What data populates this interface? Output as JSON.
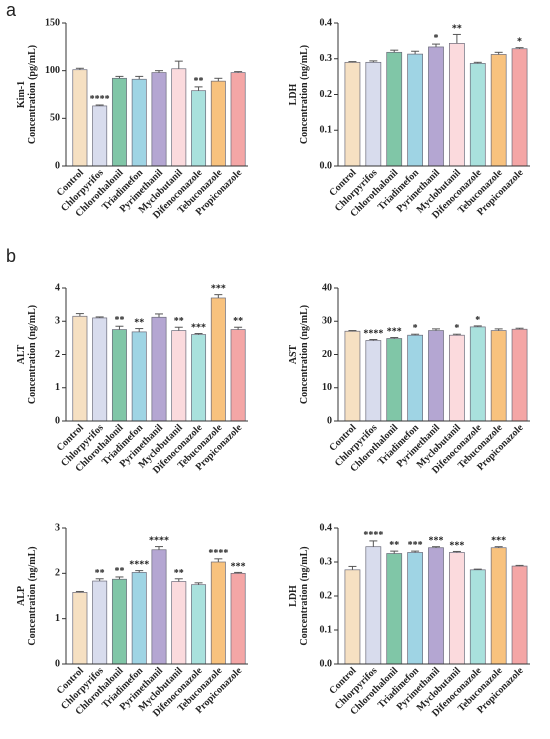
{
  "panel_labels": [
    "a",
    "b"
  ],
  "chart_data": [
    {
      "type": "bar",
      "ylabel_lines": [
        "Kim-1",
        "Concentration (pg/mL)"
      ],
      "categories": [
        "Control",
        "Chlorpyrifos",
        "Chlorothalonil",
        "Triadimefon",
        "Pyrimethanil",
        "Myclobutanil",
        "Difenoconazole",
        "Tebuconazole",
        "Propiconazole"
      ],
      "values": [
        101,
        63,
        92,
        91,
        98,
        102,
        79,
        89,
        98
      ],
      "errors": [
        1.5,
        1,
        2,
        3,
        2,
        8,
        4,
        3,
        1
      ],
      "annotations": [
        null,
        "****",
        null,
        null,
        null,
        null,
        "**",
        null,
        null
      ],
      "colors": [
        "#f6e0c2",
        "#d8dced",
        "#80c6a7",
        "#9fd4e4",
        "#b4a6d2",
        "#fbdadd",
        "#a9e1dd",
        "#f8c27e",
        "#f4a6a6"
      ],
      "ylim": [
        0,
        150
      ],
      "yticks": [
        0,
        50,
        100,
        150
      ]
    },
    {
      "type": "bar",
      "ylabel_lines": [
        "LDH",
        "Concentration (ng/mL)"
      ],
      "categories": [
        "Control",
        "Chlorpyrifos",
        "Chlorothalonil",
        "Triadimefon",
        "Pyrimethanil",
        "Myclobutanil",
        "Difenoconazole",
        "Tebuconazole",
        "Propiconazole"
      ],
      "values": [
        0.29,
        0.29,
        0.318,
        0.313,
        0.333,
        0.343,
        0.287,
        0.312,
        0.328
      ],
      "errors": [
        0.002,
        0.004,
        0.006,
        0.008,
        0.008,
        0.025,
        0.003,
        0.006,
        0.003
      ],
      "annotations": [
        null,
        null,
        null,
        null,
        "*",
        "**",
        null,
        null,
        "*"
      ],
      "colors": [
        "#f6e0c2",
        "#d8dced",
        "#80c6a7",
        "#9fd4e4",
        "#b4a6d2",
        "#fbdadd",
        "#a9e1dd",
        "#f8c27e",
        "#f4a6a6"
      ],
      "ylim": [
        0,
        0.4
      ],
      "yticks": [
        {
          "value": 0,
          "label": "0.0"
        },
        0.1,
        0.2,
        0.3,
        0.4
      ]
    },
    {
      "type": "bar",
      "ylabel_lines": [
        "ALT",
        "Concentration (ng/mL)"
      ],
      "categories": [
        "Control",
        "Chlorpyrifos",
        "Chlorothalonil",
        "Triadimefon",
        "Pyrimethanil",
        "Myclobutanil",
        "Difenoconazole",
        "Tebuconazole",
        "Propiconazole"
      ],
      "values": [
        3.15,
        3.1,
        2.75,
        2.68,
        3.12,
        2.72,
        2.6,
        3.7,
        2.75
      ],
      "errors": [
        0.08,
        0.03,
        0.1,
        0.1,
        0.1,
        0.1,
        0.03,
        0.1,
        0.07
      ],
      "annotations": [
        null,
        null,
        "**",
        "**",
        null,
        "**",
        "***",
        "***",
        "**"
      ],
      "colors": [
        "#f6e0c2",
        "#d8dced",
        "#80c6a7",
        "#9fd4e4",
        "#b4a6d2",
        "#fbdadd",
        "#a9e1dd",
        "#f8c27e",
        "#f4a6a6"
      ],
      "ylim": [
        0,
        4
      ],
      "yticks": [
        0,
        1,
        2,
        3,
        4
      ]
    },
    {
      "type": "bar",
      "ylabel_lines": [
        "AST",
        "Concentration (ng/mL)"
      ],
      "categories": [
        "Control",
        "Chlorpyrifos",
        "Chlorothalonil",
        "Triadimefon",
        "Pyrimethanil",
        "Myclobutanil",
        "Difenoconazole",
        "Tebuconazole",
        "Propiconazole"
      ],
      "values": [
        27,
        24.2,
        24.8,
        25.8,
        27.2,
        25.8,
        28.3,
        27.2,
        27.6
      ],
      "errors": [
        0.2,
        0.3,
        0.3,
        0.3,
        0.5,
        0.3,
        0.3,
        0.5,
        0.3
      ],
      "annotations": [
        null,
        "****",
        "***",
        "*",
        null,
        "*",
        "*",
        null,
        null
      ],
      "colors": [
        "#f6e0c2",
        "#d8dced",
        "#80c6a7",
        "#9fd4e4",
        "#b4a6d2",
        "#fbdadd",
        "#a9e1dd",
        "#f8c27e",
        "#f4a6a6"
      ],
      "ylim": [
        0,
        40
      ],
      "yticks": [
        0,
        10,
        20,
        30,
        40
      ]
    },
    {
      "type": "bar",
      "ylabel_lines": [
        "ALP",
        "Concentration (ng/mL)"
      ],
      "categories": [
        "Control",
        "Chlorpyrifos",
        "Chlorothalonil",
        "Triadimefon",
        "Pyrimethanil",
        "Myclobutanil",
        "Difenoconazole",
        "Tebuconazole",
        "Propiconazole"
      ],
      "values": [
        1.58,
        1.83,
        1.87,
        2.02,
        2.52,
        1.82,
        1.75,
        2.25,
        2.0
      ],
      "errors": [
        0.02,
        0.05,
        0.05,
        0.04,
        0.07,
        0.06,
        0.04,
        0.07,
        0.02
      ],
      "annotations": [
        null,
        "**",
        "**",
        "****",
        "****",
        "**",
        null,
        "****",
        "***"
      ],
      "colors": [
        "#f6e0c2",
        "#d8dced",
        "#80c6a7",
        "#9fd4e4",
        "#b4a6d2",
        "#fbdadd",
        "#a9e1dd",
        "#f8c27e",
        "#f4a6a6"
      ],
      "ylim": [
        0,
        3
      ],
      "yticks": [
        0,
        1,
        2,
        3
      ]
    },
    {
      "type": "bar",
      "ylabel_lines": [
        "LDH",
        "Concentration (ng/mL)"
      ],
      "categories": [
        "Control",
        "Chlorpyrifos",
        "Chlorothalonil",
        "Triadimefon",
        "Pyrimethanil",
        "Myclobutanil",
        "Difenoconazole",
        "Tebuconazole",
        "Propiconazole"
      ],
      "values": [
        0.277,
        0.345,
        0.325,
        0.328,
        0.342,
        0.328,
        0.277,
        0.342,
        0.288
      ],
      "errors": [
        0.01,
        0.017,
        0.007,
        0.004,
        0.003,
        0.003,
        0.002,
        0.003,
        0.002
      ],
      "annotations": [
        null,
        "****",
        "**",
        "***",
        "***",
        "***",
        null,
        "***",
        null
      ],
      "colors": [
        "#f6e0c2",
        "#d8dced",
        "#80c6a7",
        "#9fd4e4",
        "#b4a6d2",
        "#fbdadd",
        "#a9e1dd",
        "#f8c27e",
        "#f4a6a6"
      ],
      "ylim": [
        0,
        0.4
      ],
      "yticks": [
        {
          "value": 0,
          "label": "0.0"
        },
        0.1,
        0.2,
        0.3,
        0.4
      ]
    }
  ]
}
